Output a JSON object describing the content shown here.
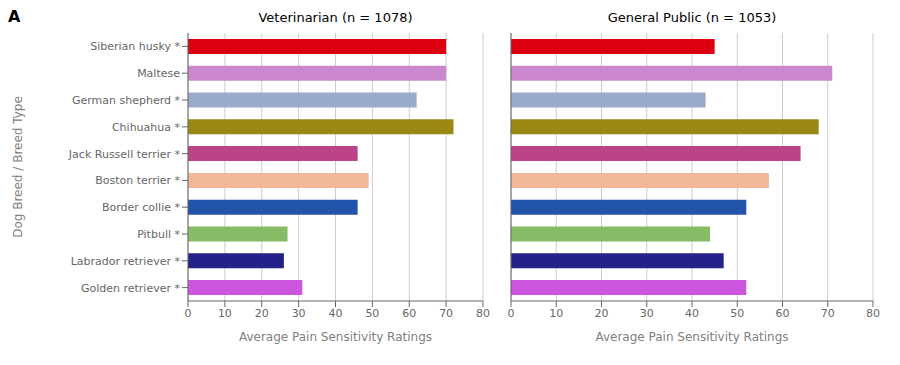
{
  "chart_data": [
    {
      "type": "bar",
      "orientation": "horizontal",
      "title": "Veterinarian (n = 1078)",
      "annotations": [
        "A"
      ],
      "categories": [
        "Siberian husky *",
        "Maltese",
        "German shepherd *",
        "Chihuahua *",
        "Jack Russell terrier *",
        "Boston terrier *",
        "Border collie *",
        "Pitbull *",
        "Labrador retriever *",
        "Golden retriever *"
      ],
      "values": [
        70,
        70,
        62,
        72,
        46,
        49,
        46,
        27,
        26,
        31
      ],
      "colors": [
        "#dd0011",
        "#cc88cc",
        "#99aacc",
        "#998811",
        "#bb4488",
        "#f0b898",
        "#2255aa",
        "#88bb66",
        "#222288",
        "#cc55dd"
      ],
      "xlabel": "Average Pain Sensitivity Ratings",
      "ylabel": "Dog Breed / Breed Type",
      "xlim": [
        0,
        80
      ],
      "xticks": [
        0,
        10,
        20,
        30,
        40,
        50,
        60,
        70,
        80
      ],
      "grid": true
    },
    {
      "type": "bar",
      "orientation": "horizontal",
      "title": "General Public (n = 1053)",
      "categories": [
        "Siberian husky *",
        "Maltese",
        "German shepherd *",
        "Chihuahua *",
        "Jack Russell terrier *",
        "Boston terrier *",
        "Border collie *",
        "Pitbull *",
        "Labrador retriever *",
        "Golden retriever *"
      ],
      "values": [
        45,
        71,
        43,
        68,
        64,
        57,
        52,
        44,
        47,
        52
      ],
      "colors": [
        "#dd0011",
        "#cc88cc",
        "#99aacc",
        "#998811",
        "#bb4488",
        "#f0b898",
        "#2255aa",
        "#88bb66",
        "#222288",
        "#cc55dd"
      ],
      "xlabel": "Average Pain Sensitivity Ratings",
      "xlim": [
        0,
        80
      ],
      "xticks": [
        0,
        10,
        20,
        30,
        40,
        50,
        60,
        70,
        80
      ],
      "grid": true,
      "tick_labels": "x"
    }
  ]
}
